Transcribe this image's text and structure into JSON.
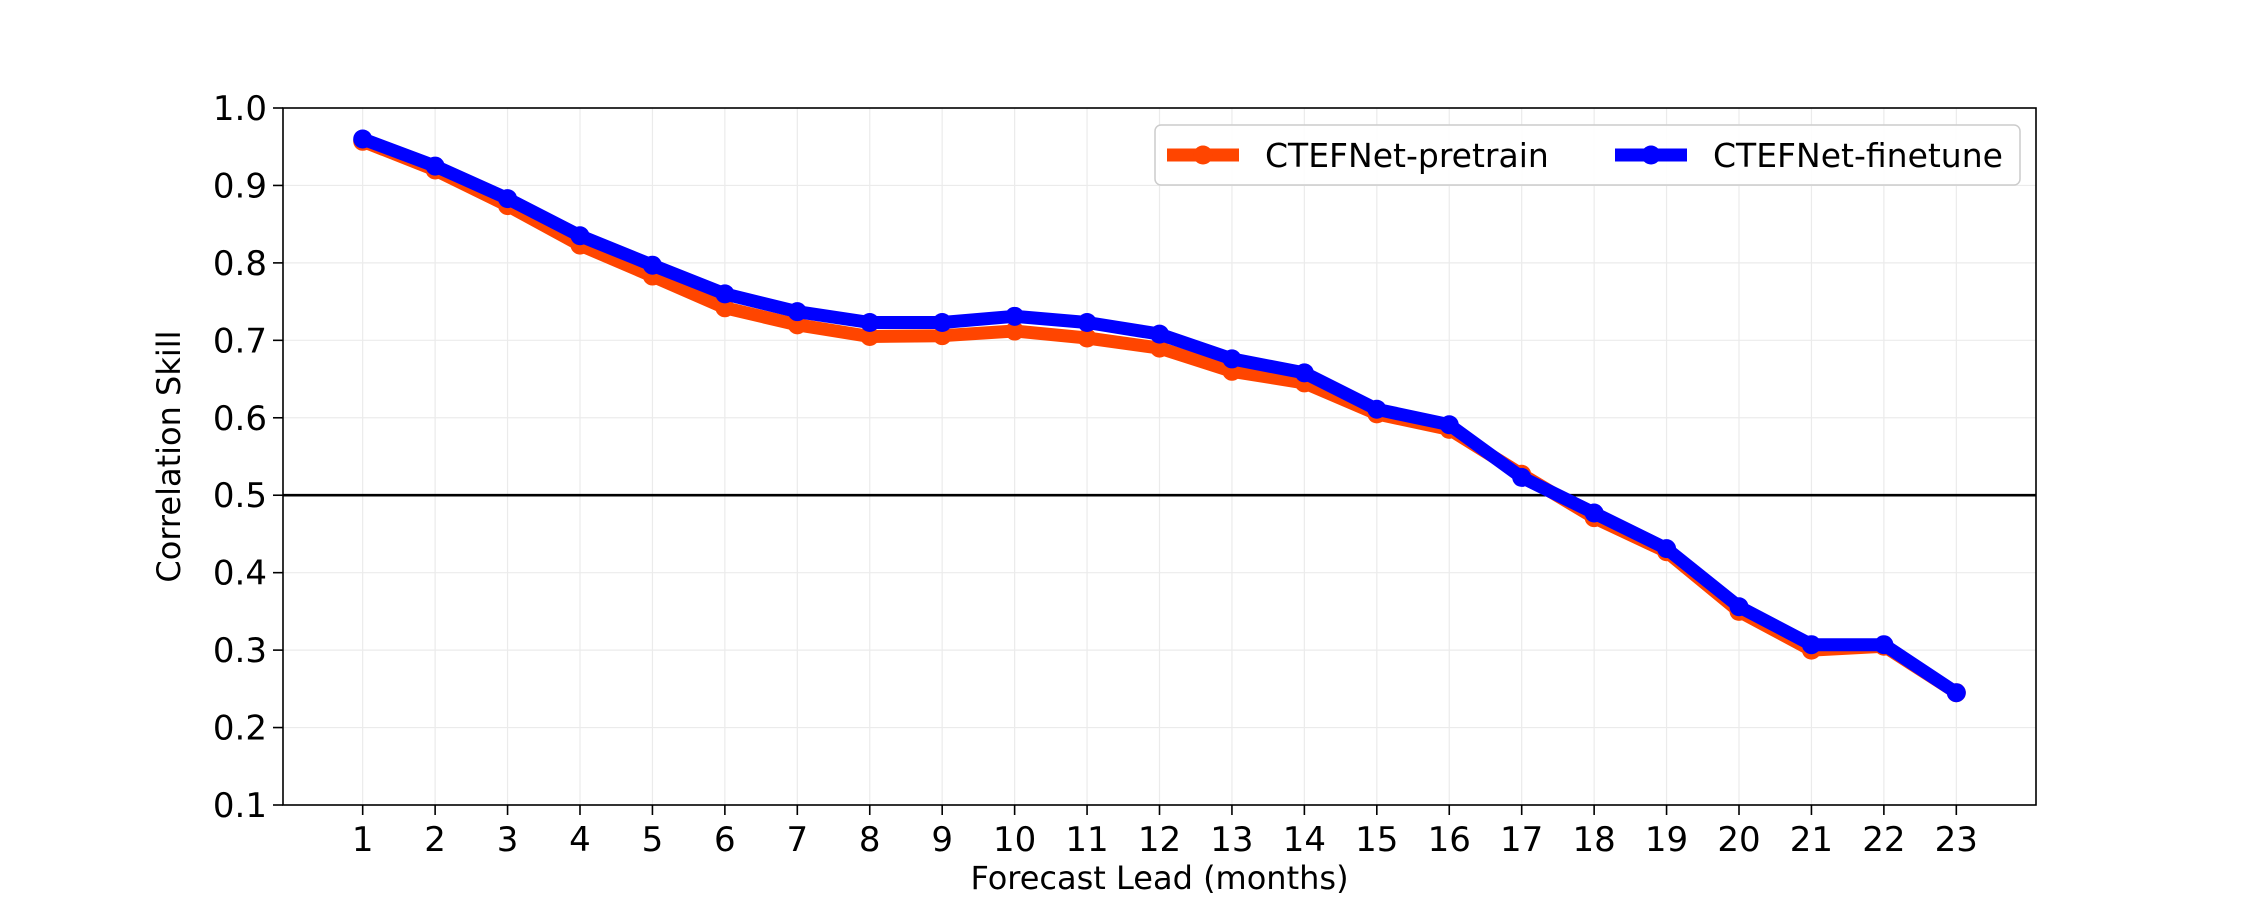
{
  "chart_data": {
    "type": "line",
    "title": "",
    "xlabel": "Forecast Lead (months)",
    "ylabel": "Correlation Skill",
    "x": [
      1,
      2,
      3,
      4,
      5,
      6,
      7,
      8,
      9,
      10,
      11,
      12,
      13,
      14,
      15,
      16,
      17,
      18,
      19,
      20,
      21,
      22,
      23
    ],
    "xlim": [
      -0.1,
      24.1
    ],
    "ylim": [
      0.1,
      1.0
    ],
    "yticks": [
      0.1,
      0.2,
      0.3,
      0.4,
      0.5,
      0.6,
      0.7,
      0.8,
      0.9,
      1.0
    ],
    "ytick_labels": [
      "0.1",
      "0.2",
      "0.3",
      "0.4",
      "0.5",
      "0.6",
      "0.7",
      "0.8",
      "0.9",
      "1.0"
    ],
    "xtick_labels": [
      "1",
      "2",
      "3",
      "4",
      "5",
      "6",
      "7",
      "8",
      "9",
      "10",
      "11",
      "12",
      "13",
      "14",
      "15",
      "16",
      "17",
      "18",
      "19",
      "20",
      "21",
      "22",
      "23"
    ],
    "reference_line": {
      "y": 0.5,
      "color": "#000000"
    },
    "grid": true,
    "legend_position": "top-right",
    "legend_columns": 2,
    "series": [
      {
        "name": "CTEFNet-pretrain",
        "color": "#ff4500",
        "values": [
          0.957,
          0.92,
          0.874,
          0.823,
          0.783,
          0.742,
          0.72,
          0.705,
          0.706,
          0.712,
          0.703,
          0.69,
          0.66,
          0.645,
          0.605,
          0.585,
          0.527,
          0.471,
          0.427,
          0.35,
          0.3,
          0.305,
          0.245
        ]
      },
      {
        "name": "CTEFNet-finetune",
        "color": "#0000ff",
        "values": [
          0.96,
          0.925,
          0.883,
          0.835,
          0.797,
          0.76,
          0.737,
          0.723,
          0.723,
          0.731,
          0.723,
          0.708,
          0.676,
          0.658,
          0.611,
          0.591,
          0.523,
          0.477,
          0.431,
          0.356,
          0.307,
          0.307,
          0.245
        ]
      }
    ]
  }
}
